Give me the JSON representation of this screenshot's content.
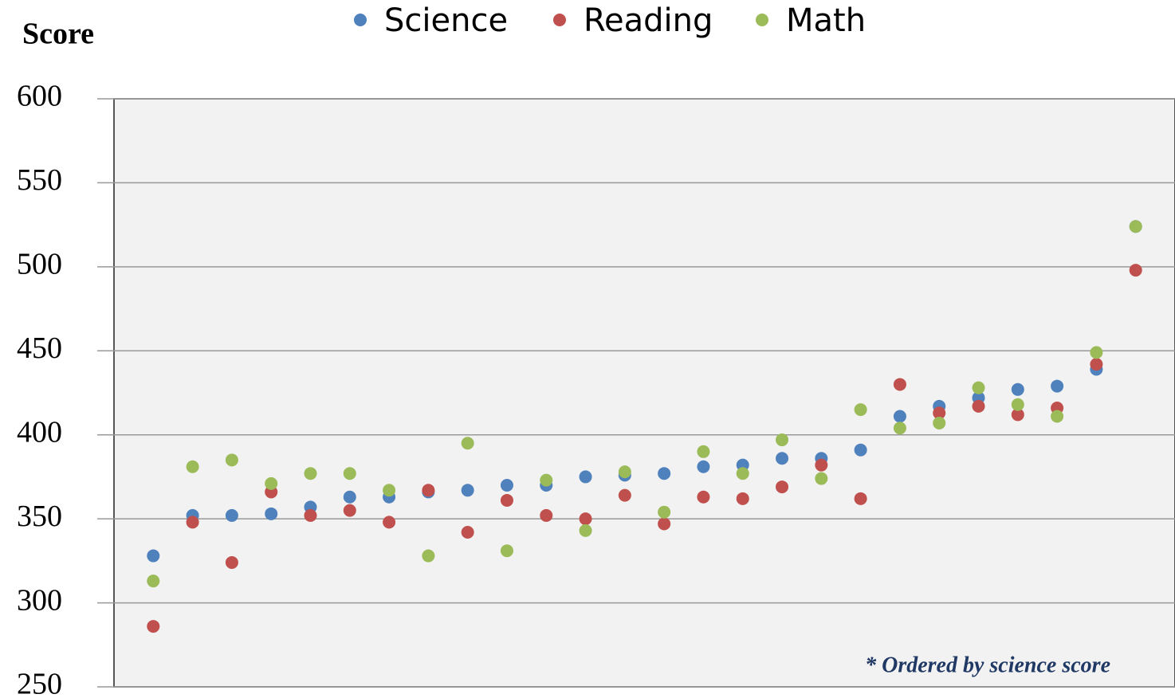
{
  "chart_data": {
    "type": "dot",
    "y_label": "Score",
    "annotation": "* Ordered by science score",
    "categories": [
      null,
      null,
      null,
      null,
      null,
      null,
      null,
      null,
      null,
      null,
      null,
      null,
      null,
      null,
      null,
      null,
      null,
      null,
      null,
      null,
      null,
      null,
      null,
      null,
      null,
      null
    ],
    "series": [
      {
        "name": "Science",
        "color": "#4f81bd",
        "values": [
          328,
          352,
          352,
          353,
          357,
          363,
          363,
          366,
          367,
          370,
          370,
          375,
          376,
          377,
          381,
          382,
          386,
          386,
          391,
          411,
          417,
          422,
          427,
          429,
          439,
          524
        ]
      },
      {
        "name": "Reading",
        "color": "#c0504d",
        "values": [
          286,
          348,
          324,
          366,
          352,
          355,
          348,
          367,
          342,
          361,
          352,
          350,
          364,
          347,
          363,
          362,
          369,
          382,
          362,
          430,
          413,
          417,
          412,
          416,
          442,
          498
        ]
      },
      {
        "name": "Math",
        "color": "#9bbb59",
        "values": [
          313,
          381,
          385,
          371,
          377,
          377,
          367,
          328,
          395,
          331,
          373,
          343,
          378,
          354,
          390,
          377,
          397,
          374,
          415,
          404,
          407,
          428,
          418,
          411,
          449,
          524
        ]
      }
    ],
    "ylim": [
      250,
      600
    ],
    "yticks": [
      250,
      300,
      350,
      400,
      450,
      500,
      550,
      600
    ],
    "grid": true,
    "legend": "top"
  }
}
